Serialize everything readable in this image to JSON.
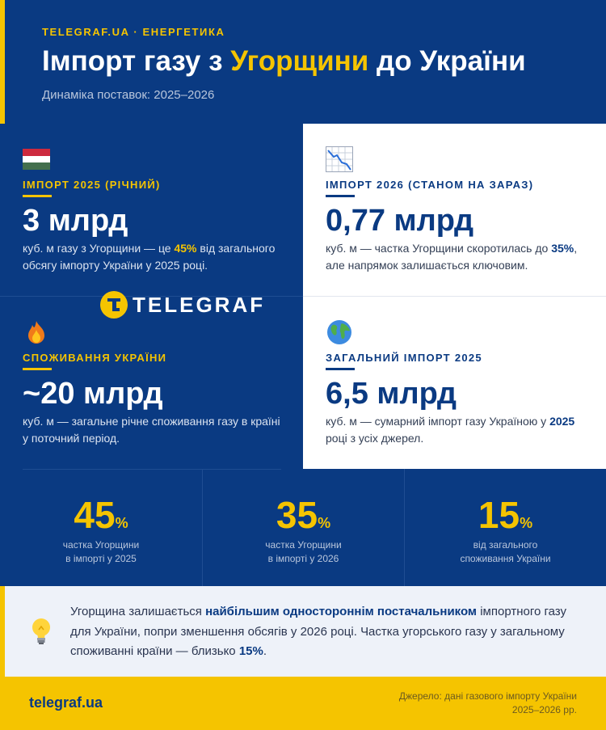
{
  "header": {
    "kicker": "TELEGRAF.UA · ЕНЕРГЕТИКА",
    "title_part1": "Імпорт газу з ",
    "title_highlight": "Угорщини",
    "title_part2": " до України",
    "subtitle": "Динаміка поставок: 2025–2026"
  },
  "colors": {
    "brand_blue": "#0a3a82",
    "brand_yellow": "#f5c400"
  },
  "logo": {
    "text": "TELEGRAF"
  },
  "cards": [
    {
      "icon": "hungary-flag-icon",
      "label": "ІМПОРТ 2025 (РІЧНИЙ)",
      "value": "3 млрд",
      "desc_pre": "куб. м газу з Угорщини — це ",
      "desc_bold": "45%",
      "desc_post": " від загального обсягу імпорту України у 2025 році."
    },
    {
      "icon": "chart-decreasing-icon",
      "label": "ІМПОРТ 2026 (СТАНОМ НА ЗАРАЗ)",
      "value": "0,77 млрд",
      "desc_pre": "куб. м — частка Угорщини скоротилась до ",
      "desc_bold": "35%",
      "desc_post": ", але напрямок залишається ключовим."
    },
    {
      "icon": "fire-icon",
      "label": "СПОЖИВАННЯ УКРАЇНИ",
      "value": "~20 млрд",
      "desc_pre": "куб. м — загальне річне споживання газу в країні у поточний період.",
      "desc_bold": "",
      "desc_post": ""
    },
    {
      "icon": "globe-icon",
      "label": "ЗАГАЛЬНИЙ ІМПОРТ 2025",
      "value": "6,5 млрд",
      "desc_pre": "куб. м — сумарний імпорт газу Україною у ",
      "desc_bold": "2025",
      "desc_post": " році з усіх джерел."
    }
  ],
  "stats": [
    {
      "value": "45",
      "unit": "%",
      "caption_line1": "частка Угорщини",
      "caption_line2": "в імпорті у 2025"
    },
    {
      "value": "35",
      "unit": "%",
      "caption_line1": "частка Угорщини",
      "caption_line2": "в імпорті у 2026"
    },
    {
      "value": "15",
      "unit": "%",
      "caption_line1": "від загального",
      "caption_line2": "споживання України"
    }
  ],
  "note": {
    "icon": "light-bulb-icon",
    "t1": "Угорщина залишається ",
    "b1": "найбільшим одностороннім постачальником",
    "t2": " імпортного газу для України, попри зменшення обсягів у 2026 році. Частка угорського газу у загальному споживанні країни — близько ",
    "b2": "15%",
    "t3": "."
  },
  "footer": {
    "site": "telegraf.ua",
    "source_line1": "Джерело: дані газового імпорту України",
    "source_line2": "2025–2026 рр."
  }
}
